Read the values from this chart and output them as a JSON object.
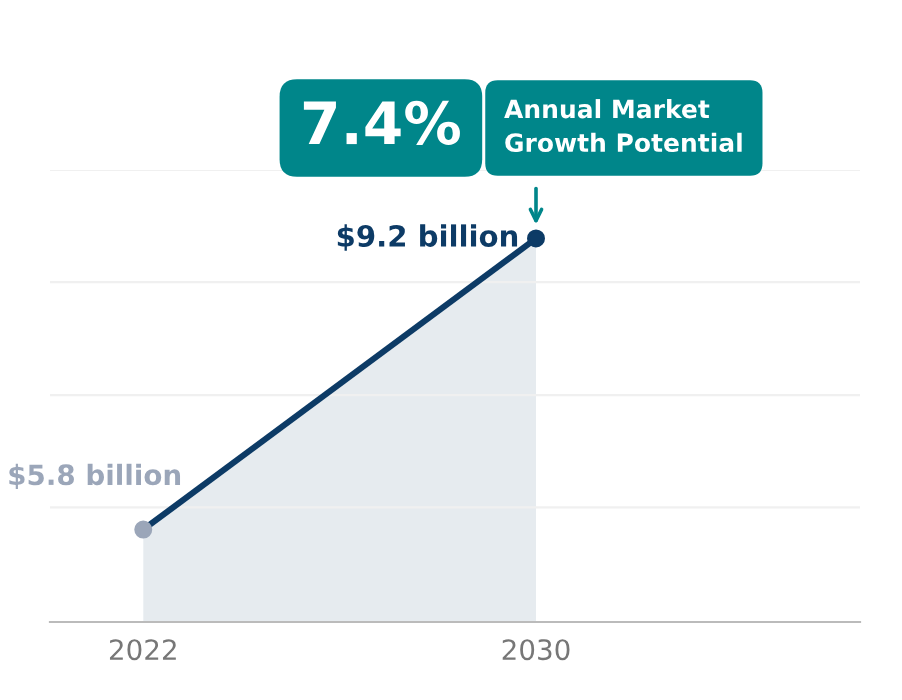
{
  "chart_data": {
    "type": "area",
    "x": [
      2022,
      2030
    ],
    "series": [
      {
        "color": "#0d3b66",
        "colors": [
          "#9ba6b9",
          "#0d3b66"
        ],
        "values": [
          5.8,
          9.2
        ],
        "value_labels": [
          "$5.8 billion",
          "$9.2 billion"
        ]
      }
    ],
    "xlim": [
      2020.1,
      2036.6
    ],
    "xticks": [
      2022,
      2030
    ],
    "ylim": [
      4.72,
      10.0
    ],
    "yticks": [
      {
        "value": 6.06,
        "label": null
      },
      {
        "value": 7.37,
        "label": null
      },
      {
        "value": 8.69,
        "label": null
      },
      {
        "value": 10.0,
        "label": null
      }
    ],
    "grid": "y",
    "marker": "circle",
    "annotations": [
      "7.4%",
      "Annual Market\nGrowth Potential"
    ]
  }
}
